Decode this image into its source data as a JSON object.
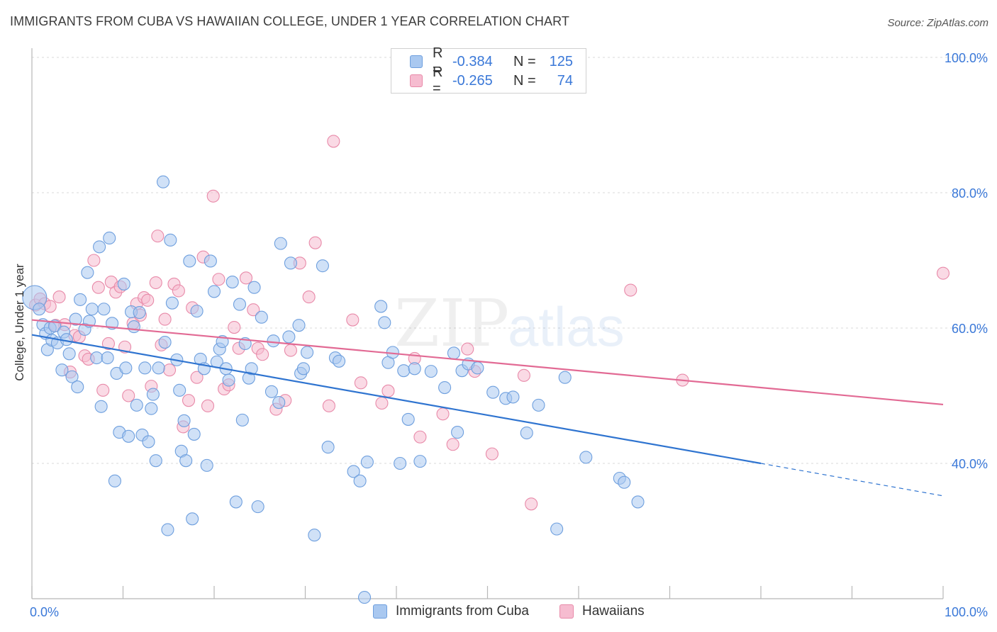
{
  "title": "IMMIGRANTS FROM CUBA VS HAWAIIAN COLLEGE, UNDER 1 YEAR CORRELATION CHART",
  "source": "Source: ZipAtlas.com",
  "watermark": {
    "zip": "ZIP",
    "atlas": "atlas"
  },
  "legend": {
    "series1": {
      "r_label": "R =",
      "r_value": "-0.384",
      "n_label": "N =",
      "n_value": "125"
    },
    "series2": {
      "r_label": "R =",
      "r_value": "-0.265",
      "n_label": "N =",
      "n_value": "74"
    }
  },
  "bottom_legend": {
    "series1": "Immigrants from Cuba",
    "series2": "Hawaiians"
  },
  "colors": {
    "cuba_fill": "#a9c8f0",
    "cuba_stroke": "#6e9fde",
    "cuba_line": "#2f74d0",
    "haw_fill": "#f6bcd0",
    "haw_stroke": "#e88aa9",
    "haw_line": "#e26a94",
    "tick_label": "#3a78d8",
    "grid": "#d8d8d8"
  },
  "chart_data": {
    "type": "scatter",
    "title": "IMMIGRANTS FROM CUBA VS HAWAIIAN COLLEGE, UNDER 1 YEAR CORRELATION CHART",
    "xlabel": "",
    "ylabel": "College, Under 1 year",
    "xlim": [
      0,
      100
    ],
    "ylim": [
      20,
      104
    ],
    "x_tick_labels": [
      "0.0%",
      "100.0%"
    ],
    "y_ticks": [
      {
        "value": 40,
        "label": "40.0%"
      },
      {
        "value": 60,
        "label": "60.0%"
      },
      {
        "value": 80,
        "label": "80.0%"
      },
      {
        "value": 100,
        "label": "100.0%"
      }
    ],
    "series": [
      {
        "name": "Immigrants from Cuba",
        "r": -0.384,
        "n": 125,
        "trend": {
          "x0": 0,
          "y0": 59.0,
          "x1": 80,
          "y1": 40.0,
          "dash_to_x": 100,
          "dash_to_y": 35.2
        },
        "points": [
          [
            0.3,
            64.5
          ],
          [
            0.8,
            62.8
          ],
          [
            1.2,
            60.5
          ],
          [
            1.5,
            59.2
          ],
          [
            1.7,
            56.8
          ],
          [
            2.0,
            60.0
          ],
          [
            2.2,
            58.2
          ],
          [
            2.5,
            60.3
          ],
          [
            2.8,
            57.8
          ],
          [
            3.3,
            53.8
          ],
          [
            3.5,
            59.4
          ],
          [
            3.8,
            58.3
          ],
          [
            4.1,
            56.2
          ],
          [
            4.4,
            52.8
          ],
          [
            4.8,
            61.3
          ],
          [
            5.0,
            51.3
          ],
          [
            5.3,
            64.2
          ],
          [
            5.8,
            59.8
          ],
          [
            6.1,
            68.2
          ],
          [
            6.3,
            61.0
          ],
          [
            6.6,
            62.8
          ],
          [
            7.1,
            55.6
          ],
          [
            7.4,
            72.0
          ],
          [
            7.6,
            48.4
          ],
          [
            7.9,
            62.8
          ],
          [
            8.3,
            55.6
          ],
          [
            8.5,
            73.3
          ],
          [
            8.8,
            60.7
          ],
          [
            9.1,
            37.4
          ],
          [
            9.3,
            53.3
          ],
          [
            9.6,
            44.6
          ],
          [
            10.1,
            66.5
          ],
          [
            10.3,
            54.1
          ],
          [
            10.6,
            44.0
          ],
          [
            10.9,
            62.4
          ],
          [
            11.2,
            60.2
          ],
          [
            11.5,
            48.6
          ],
          [
            11.8,
            62.3
          ],
          [
            12.1,
            44.2
          ],
          [
            12.4,
            54.1
          ],
          [
            12.8,
            43.2
          ],
          [
            13.1,
            48.1
          ],
          [
            13.3,
            50.2
          ],
          [
            13.6,
            40.4
          ],
          [
            13.9,
            54.1
          ],
          [
            14.4,
            81.6
          ],
          [
            14.6,
            57.9
          ],
          [
            14.9,
            30.2
          ],
          [
            15.2,
            73.0
          ],
          [
            15.4,
            63.7
          ],
          [
            15.9,
            55.3
          ],
          [
            16.2,
            50.8
          ],
          [
            16.4,
            41.8
          ],
          [
            16.7,
            46.3
          ],
          [
            16.9,
            40.4
          ],
          [
            17.3,
            69.9
          ],
          [
            17.6,
            31.8
          ],
          [
            17.8,
            44.3
          ],
          [
            18.1,
            62.5
          ],
          [
            18.5,
            55.4
          ],
          [
            18.9,
            54.0
          ],
          [
            19.2,
            39.7
          ],
          [
            19.6,
            69.9
          ],
          [
            20.0,
            65.4
          ],
          [
            20.3,
            55.0
          ],
          [
            20.6,
            56.9
          ],
          [
            20.9,
            58.0
          ],
          [
            21.3,
            54.0
          ],
          [
            21.6,
            52.3
          ],
          [
            22.0,
            66.8
          ],
          [
            22.4,
            34.3
          ],
          [
            22.8,
            63.5
          ],
          [
            23.1,
            46.4
          ],
          [
            23.4,
            57.7
          ],
          [
            23.8,
            52.6
          ],
          [
            24.1,
            54.0
          ],
          [
            24.4,
            66.0
          ],
          [
            24.8,
            33.6
          ],
          [
            25.2,
            61.6
          ],
          [
            26.3,
            50.6
          ],
          [
            26.5,
            58.1
          ],
          [
            27.1,
            49.0
          ],
          [
            27.3,
            72.5
          ],
          [
            28.2,
            58.7
          ],
          [
            28.4,
            69.6
          ],
          [
            29.3,
            60.4
          ],
          [
            29.5,
            53.3
          ],
          [
            29.8,
            54.0
          ],
          [
            30.2,
            56.4
          ],
          [
            31.0,
            29.4
          ],
          [
            31.9,
            69.2
          ],
          [
            32.5,
            42.4
          ],
          [
            33.3,
            55.6
          ],
          [
            33.7,
            55.1
          ],
          [
            35.3,
            38.8
          ],
          [
            36.0,
            37.4
          ],
          [
            36.5,
            20.2
          ],
          [
            38.3,
            63.2
          ],
          [
            38.7,
            60.8
          ],
          [
            39.1,
            54.9
          ],
          [
            39.6,
            56.4
          ],
          [
            40.4,
            40.0
          ],
          [
            40.8,
            53.7
          ],
          [
            41.3,
            46.5
          ],
          [
            42.0,
            54.0
          ],
          [
            42.6,
            40.3
          ],
          [
            43.8,
            53.6
          ],
          [
            45.3,
            51.2
          ],
          [
            46.3,
            56.3
          ],
          [
            46.7,
            44.6
          ],
          [
            47.2,
            53.7
          ],
          [
            47.9,
            54.7
          ],
          [
            48.9,
            54.1
          ],
          [
            50.6,
            50.5
          ],
          [
            52.0,
            49.6
          ],
          [
            52.8,
            49.8
          ],
          [
            54.3,
            44.5
          ],
          [
            55.6,
            48.6
          ],
          [
            57.6,
            30.3
          ],
          [
            58.5,
            52.7
          ],
          [
            60.8,
            40.9
          ],
          [
            64.5,
            37.8
          ],
          [
            65.0,
            37.2
          ],
          [
            66.5,
            34.3
          ],
          [
            36.8,
            40.2
          ]
        ]
      },
      {
        "name": "Hawaiians",
        "r": -0.265,
        "n": 74,
        "trend": {
          "x0": 0,
          "y0": 61.2,
          "x1": 100,
          "y1": 48.7
        },
        "points": [
          [
            0.4,
            63.4
          ],
          [
            0.9,
            64.3
          ],
          [
            1.4,
            63.6
          ],
          [
            2.0,
            63.2
          ],
          [
            2.6,
            60.4
          ],
          [
            3.0,
            64.6
          ],
          [
            3.6,
            60.5
          ],
          [
            4.2,
            53.5
          ],
          [
            4.7,
            58.9
          ],
          [
            5.2,
            58.7
          ],
          [
            5.8,
            55.9
          ],
          [
            6.2,
            55.4
          ],
          [
            6.8,
            70.0
          ],
          [
            7.3,
            66.0
          ],
          [
            7.8,
            50.8
          ],
          [
            8.4,
            57.7
          ],
          [
            8.7,
            66.8
          ],
          [
            9.2,
            65.3
          ],
          [
            9.7,
            66.1
          ],
          [
            10.2,
            57.2
          ],
          [
            10.6,
            50.0
          ],
          [
            11.1,
            60.7
          ],
          [
            11.5,
            63.6
          ],
          [
            11.9,
            61.9
          ],
          [
            12.3,
            64.5
          ],
          [
            12.7,
            64.1
          ],
          [
            13.1,
            51.4
          ],
          [
            13.6,
            66.7
          ],
          [
            13.8,
            73.6
          ],
          [
            14.2,
            57.5
          ],
          [
            14.6,
            61.3
          ],
          [
            15.1,
            53.8
          ],
          [
            15.6,
            66.5
          ],
          [
            16.1,
            65.5
          ],
          [
            16.6,
            45.4
          ],
          [
            17.2,
            49.3
          ],
          [
            17.6,
            63.0
          ],
          [
            18.1,
            52.7
          ],
          [
            18.8,
            70.5
          ],
          [
            19.3,
            48.5
          ],
          [
            19.9,
            79.5
          ],
          [
            20.5,
            67.2
          ],
          [
            21.1,
            51.0
          ],
          [
            21.6,
            51.6
          ],
          [
            22.2,
            60.1
          ],
          [
            22.7,
            57.0
          ],
          [
            23.5,
            67.4
          ],
          [
            24.3,
            62.7
          ],
          [
            24.8,
            57.0
          ],
          [
            25.3,
            56.1
          ],
          [
            26.8,
            48.0
          ],
          [
            27.8,
            49.3
          ],
          [
            28.4,
            56.7
          ],
          [
            29.4,
            69.6
          ],
          [
            30.4,
            64.6
          ],
          [
            31.1,
            72.6
          ],
          [
            32.6,
            48.5
          ],
          [
            33.1,
            87.6
          ],
          [
            35.2,
            61.2
          ],
          [
            36.1,
            51.9
          ],
          [
            38.4,
            48.9
          ],
          [
            39.1,
            50.7
          ],
          [
            42.0,
            55.5
          ],
          [
            42.6,
            43.9
          ],
          [
            45.1,
            47.3
          ],
          [
            46.2,
            42.8
          ],
          [
            47.8,
            56.9
          ],
          [
            48.6,
            53.6
          ],
          [
            50.5,
            41.4
          ],
          [
            54.0,
            53.0
          ],
          [
            54.8,
            34.0
          ],
          [
            65.7,
            65.6
          ],
          [
            71.4,
            52.3
          ],
          [
            100.0,
            68.1
          ]
        ]
      }
    ]
  }
}
